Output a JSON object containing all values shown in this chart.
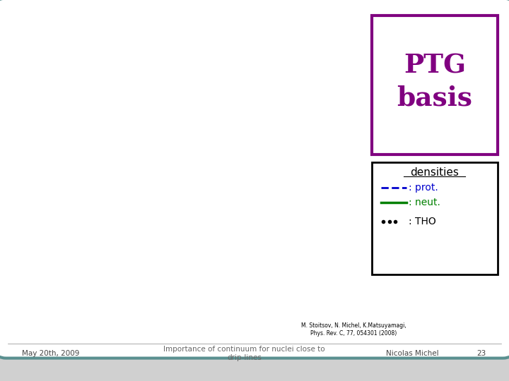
{
  "background_color": "#d0d0d0",
  "slide_facecolor": "white",
  "border_color": "#5a9090",
  "ptg_color": "#800080",
  "prot_color": "#0000cc",
  "neut_color": "#008000",
  "tho_color": "#000000",
  "bottom_text1": "M. Stoitsov, N. Michel, K.Matsuyamagi,",
  "bottom_text2": "Phys. Rev. C, 77, 054301 (2008)",
  "footer_left": "May 20th, 2009",
  "footer_center": "Importance of continuum for nuclei close to\ndrip-lines",
  "footer_right": "Nicolas Michel",
  "footer_num": "23"
}
